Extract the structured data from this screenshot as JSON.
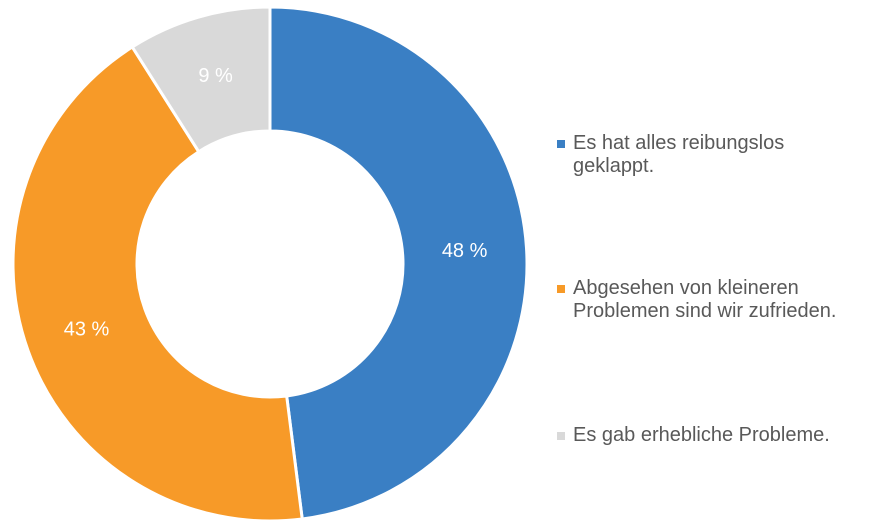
{
  "chart_data": {
    "type": "donut",
    "categories": [
      "Es hat alles reibungslos geklappt.",
      "Abgesehen von kleineren Problemen sind wir zufrieden.",
      "Es gab erhebliche Probleme."
    ],
    "values": [
      48,
      43,
      9
    ],
    "value_labels": [
      "48 %",
      "43 %",
      "9 %"
    ],
    "colors": [
      "#3a7fc4",
      "#f79a28",
      "#d9d9d9"
    ],
    "legend": "right"
  }
}
